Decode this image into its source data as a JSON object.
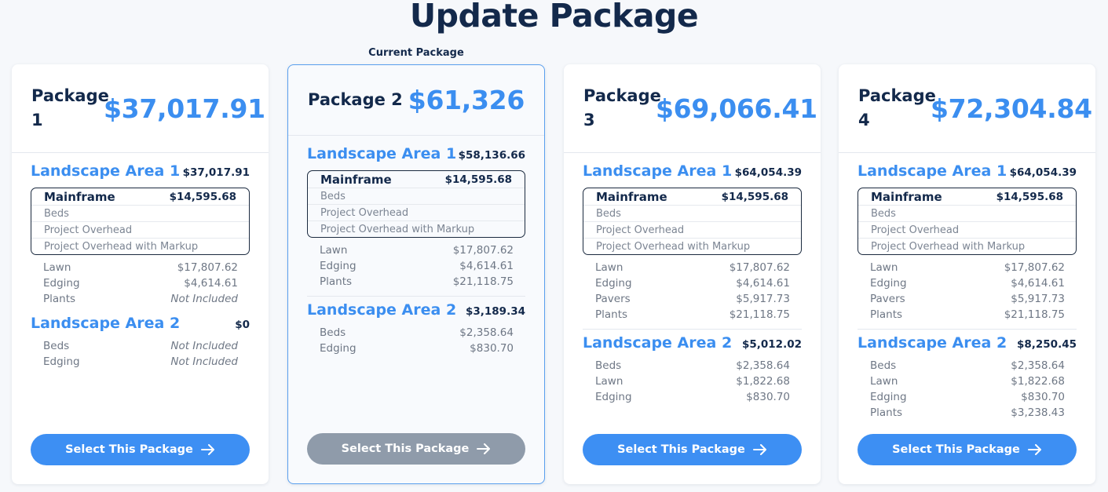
{
  "page": {
    "title": "Update Package",
    "current_label": "Current Package"
  },
  "colors": {
    "accent": "#3b8ef0",
    "heading": "#13294b",
    "button": "#3d8ff3",
    "button_disabled": "#8f9baa"
  },
  "packages": [
    {
      "name": "Package 1",
      "price": "$37,017.91",
      "button_label": "Select This Package",
      "areas": [
        {
          "name": "Landscape Area 1",
          "total": "$37,017.91",
          "mainframe": {
            "name": "Mainframe",
            "total": "$14,595.68",
            "items": [
              "Beds",
              "Project Overhead",
              "Project Overhead with Markup"
            ]
          },
          "items": [
            {
              "label": "Lawn",
              "value": "$17,807.62"
            },
            {
              "label": "Edging",
              "value": "$4,614.61"
            },
            {
              "label": "Plants",
              "value": "Not Included"
            }
          ]
        },
        {
          "name": "Landscape Area 2",
          "total": "$0",
          "items": [
            {
              "label": "Beds",
              "value": "Not Included"
            },
            {
              "label": "Edging",
              "value": "Not Included"
            }
          ]
        }
      ]
    },
    {
      "name": "Package 2",
      "price": "$61,326",
      "current": true,
      "button_label": "Select This Package",
      "areas": [
        {
          "name": "Landscape Area 1",
          "total": "$58,136.66",
          "mainframe": {
            "name": "Mainframe",
            "total": "$14,595.68",
            "items": [
              "Beds",
              "Project Overhead",
              "Project Overhead with Markup"
            ]
          },
          "items": [
            {
              "label": "Lawn",
              "value": "$17,807.62"
            },
            {
              "label": "Edging",
              "value": "$4,614.61"
            },
            {
              "label": "Plants",
              "value": "$21,118.75"
            }
          ]
        },
        {
          "name": "Landscape Area 2",
          "total": "$3,189.34",
          "items": [
            {
              "label": "Beds",
              "value": "$2,358.64"
            },
            {
              "label": "Edging",
              "value": "$830.70"
            }
          ]
        }
      ]
    },
    {
      "name": "Package 3",
      "price": "$69,066.41",
      "button_label": "Select This Package",
      "areas": [
        {
          "name": "Landscape Area 1",
          "total": "$64,054.39",
          "mainframe": {
            "name": "Mainframe",
            "total": "$14,595.68",
            "items": [
              "Beds",
              "Project Overhead",
              "Project Overhead with Markup"
            ]
          },
          "items": [
            {
              "label": "Lawn",
              "value": "$17,807.62"
            },
            {
              "label": "Edging",
              "value": "$4,614.61"
            },
            {
              "label": "Pavers",
              "value": "$5,917.73"
            },
            {
              "label": "Plants",
              "value": "$21,118.75"
            }
          ]
        },
        {
          "name": "Landscape Area 2",
          "total": "$5,012.02",
          "items": [
            {
              "label": "Beds",
              "value": "$2,358.64"
            },
            {
              "label": "Lawn",
              "value": "$1,822.68"
            },
            {
              "label": "Edging",
              "value": "$830.70"
            }
          ]
        }
      ]
    },
    {
      "name": "Package 4",
      "price": "$72,304.84",
      "button_label": "Select This Package",
      "areas": [
        {
          "name": "Landscape Area 1",
          "total": "$64,054.39",
          "mainframe": {
            "name": "Mainframe",
            "total": "$14,595.68",
            "items": [
              "Beds",
              "Project Overhead",
              "Project Overhead with Markup"
            ]
          },
          "items": [
            {
              "label": "Lawn",
              "value": "$17,807.62"
            },
            {
              "label": "Edging",
              "value": "$4,614.61"
            },
            {
              "label": "Pavers",
              "value": "$5,917.73"
            },
            {
              "label": "Plants",
              "value": "$21,118.75"
            }
          ]
        },
        {
          "name": "Landscape Area 2",
          "total": "$8,250.45",
          "items": [
            {
              "label": "Beds",
              "value": "$2,358.64"
            },
            {
              "label": "Lawn",
              "value": "$1,822.68"
            },
            {
              "label": "Edging",
              "value": "$830.70"
            },
            {
              "label": "Plants",
              "value": "$3,238.43"
            }
          ]
        }
      ]
    }
  ]
}
